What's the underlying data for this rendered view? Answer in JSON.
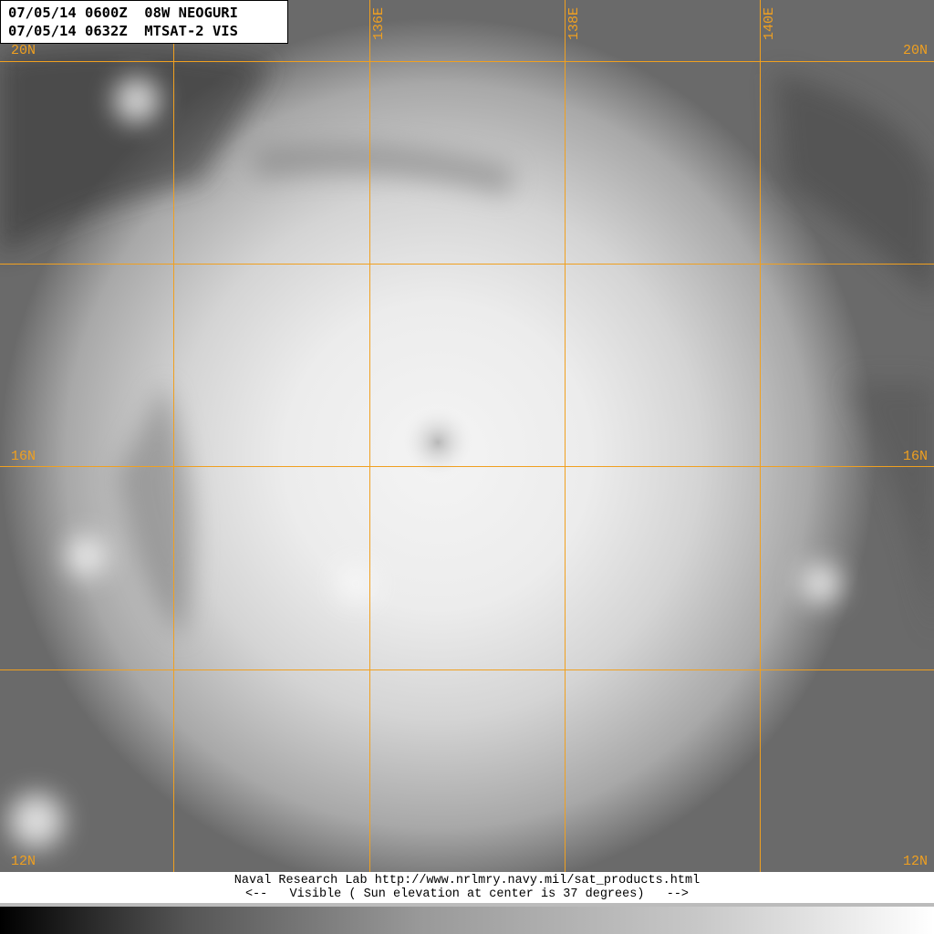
{
  "header": {
    "line1": "07/05/14 0600Z  08W NEOGURI",
    "line2": "07/05/14 0632Z  MTSAT-2 VIS"
  },
  "grid": {
    "color": "#f0a020",
    "latitudes": [
      "20N",
      "16N",
      "12N"
    ],
    "longitudes": [
      "136E",
      "138E",
      "140E"
    ]
  },
  "footer": {
    "line1": "Naval Research Lab http://www.nrlmry.navy.mil/sat_products.html",
    "line2": "<--   Visible ( Sun elevation at center is 37 degrees)   -->"
  },
  "colorbar": {
    "from": "#000000",
    "to": "#ffffff"
  }
}
